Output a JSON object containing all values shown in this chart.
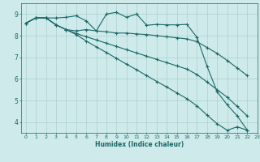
{
  "xlabel": "Humidex (Indice chaleur)",
  "bg_color": "#ceeaea",
  "grid_color": "#aed0d0",
  "line_color": "#1a6868",
  "xlim": [
    -0.5,
    23
  ],
  "ylim": [
    3.5,
    9.5
  ],
  "yticks": [
    4,
    5,
    6,
    7,
    8,
    9
  ],
  "xticks": [
    0,
    1,
    2,
    3,
    4,
    5,
    6,
    7,
    8,
    9,
    10,
    11,
    12,
    13,
    14,
    15,
    16,
    17,
    18,
    19,
    20,
    21,
    22,
    23
  ],
  "series": [
    {
      "x": [
        0,
        1,
        2,
        3,
        4,
        5,
        6,
        7,
        8,
        9,
        10,
        11,
        12,
        13,
        14,
        15,
        16,
        17,
        18,
        19,
        20,
        21,
        22
      ],
      "y": [
        8.58,
        8.82,
        8.82,
        8.82,
        8.85,
        8.92,
        8.68,
        8.22,
        9.0,
        9.08,
        8.85,
        9.0,
        8.48,
        8.52,
        8.5,
        8.5,
        8.52,
        7.92,
        6.58,
        5.4,
        4.8,
        4.28,
        3.62
      ]
    },
    {
      "x": [
        0,
        1,
        2,
        3,
        4,
        5,
        6,
        7,
        8,
        9,
        10,
        11,
        12,
        13,
        14,
        15,
        16,
        17,
        18,
        19,
        20,
        21,
        22
      ],
      "y": [
        8.58,
        8.82,
        8.82,
        8.5,
        8.28,
        8.22,
        8.28,
        8.22,
        8.18,
        8.12,
        8.12,
        8.08,
        8.05,
        8.0,
        7.95,
        7.9,
        7.85,
        7.72,
        7.45,
        7.18,
        6.85,
        6.5,
        6.15
      ]
    },
    {
      "x": [
        0,
        1,
        2,
        3,
        4,
        5,
        6,
        7,
        8,
        9,
        10,
        11,
        12,
        13,
        14,
        15,
        16,
        17,
        18,
        19,
        20,
        21,
        22
      ],
      "y": [
        8.58,
        8.82,
        8.82,
        8.5,
        8.28,
        8.1,
        7.95,
        7.8,
        7.65,
        7.5,
        7.35,
        7.2,
        7.05,
        6.9,
        6.75,
        6.6,
        6.45,
        6.2,
        5.85,
        5.5,
        5.15,
        4.72,
        4.28
      ]
    },
    {
      "x": [
        0,
        1,
        2,
        3,
        4,
        5,
        6,
        7,
        8,
        9,
        10,
        11,
        12,
        13,
        14,
        15,
        16,
        17,
        18,
        19,
        20,
        21,
        22
      ],
      "y": [
        8.58,
        8.82,
        8.82,
        8.5,
        8.28,
        8.05,
        7.75,
        7.48,
        7.22,
        6.95,
        6.68,
        6.42,
        6.15,
        5.88,
        5.62,
        5.35,
        5.08,
        4.75,
        4.32,
        3.92,
        3.62,
        3.78,
        3.62
      ]
    }
  ]
}
